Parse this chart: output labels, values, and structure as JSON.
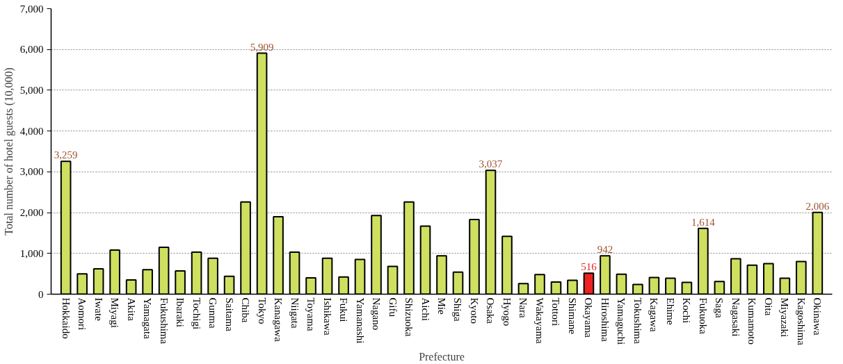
{
  "chart_data": {
    "type": "bar",
    "xlabel": "Prefecture",
    "ylabel": "Total number of hotel guests (10,000)",
    "categories": [
      "Hokkaido",
      "Aomori",
      "Iwate",
      "Miyagi",
      "Akita",
      "Yamagata",
      "Fukushima",
      "Ibaraki",
      "Tochigi",
      "Gunma",
      "Saitama",
      "Chiba",
      "Tokyo",
      "Kanagawa",
      "Niigata",
      "Toyama",
      "Ishikawa",
      "Fukui",
      "Yamanashi",
      "Nagano",
      "Gifu",
      "Shizuoka",
      "Aichi",
      "Mie",
      "Shiga",
      "Kyoto",
      "Osaka",
      "Hyogo",
      "Nara",
      "Wakayama",
      "Tottori",
      "Shimane",
      "Okayama",
      "Hiroshima",
      "Yamaguchi",
      "Tokushima",
      "Kagawa",
      "Ehime",
      "Kochi",
      "Fukuoka",
      "Saga",
      "Nagasaki",
      "Kumamoto",
      "Oita",
      "Miyazaki",
      "Kagoshima",
      "Okinawa"
    ],
    "values": [
      3259,
      500,
      620,
      1080,
      350,
      600,
      1150,
      570,
      1030,
      880,
      440,
      2260,
      5909,
      1900,
      1030,
      400,
      880,
      420,
      850,
      1930,
      680,
      2260,
      1670,
      940,
      540,
      1830,
      3037,
      1420,
      260,
      480,
      300,
      340,
      516,
      942,
      490,
      240,
      410,
      390,
      290,
      1614,
      310,
      870,
      710,
      750,
      390,
      800,
      2006
    ],
    "colors": [
      "#cfdf60",
      "#cfdf60",
      "#cfdf60",
      "#cfdf60",
      "#cfdf60",
      "#cfdf60",
      "#cfdf60",
      "#cfdf60",
      "#cfdf60",
      "#cfdf60",
      "#cfdf60",
      "#cfdf60",
      "#cfdf60",
      "#cfdf60",
      "#cfdf60",
      "#cfdf60",
      "#cfdf60",
      "#cfdf60",
      "#cfdf60",
      "#cfdf60",
      "#cfdf60",
      "#cfdf60",
      "#cfdf60",
      "#cfdf60",
      "#cfdf60",
      "#cfdf60",
      "#cfdf60",
      "#cfdf60",
      "#cfdf60",
      "#cfdf60",
      "#cfdf60",
      "#cfdf60",
      "#ee2222",
      "#cfdf60",
      "#cfdf60",
      "#cfdf60",
      "#cfdf60",
      "#cfdf60",
      "#cfdf60",
      "#cfdf60",
      "#cfdf60",
      "#cfdf60",
      "#cfdf60",
      "#cfdf60",
      "#cfdf60",
      "#cfdf60",
      "#cfdf60"
    ],
    "value_labels": [
      "3,259",
      null,
      null,
      null,
      null,
      null,
      null,
      null,
      null,
      null,
      null,
      null,
      "5,909",
      null,
      null,
      null,
      null,
      null,
      null,
      null,
      null,
      null,
      null,
      null,
      null,
      null,
      "3,037",
      null,
      null,
      null,
      null,
      null,
      "516",
      "942",
      null,
      null,
      null,
      null,
      null,
      "1,614",
      null,
      null,
      null,
      null,
      null,
      null,
      "2,006"
    ],
    "ylim": [
      0,
      7000
    ],
    "yticks": [
      {
        "value": 0,
        "label": "0"
      },
      {
        "value": 1000,
        "label": "1,000"
      },
      {
        "value": 2000,
        "label": "2,000"
      },
      {
        "value": 3000,
        "label": "3,000"
      },
      {
        "value": 4000,
        "label": "4,000"
      },
      {
        "value": 5000,
        "label": "5,000"
      },
      {
        "value": 6000,
        "label": "6,000"
      },
      {
        "value": 7000,
        "label": "7,000"
      }
    ],
    "grid": "y"
  }
}
